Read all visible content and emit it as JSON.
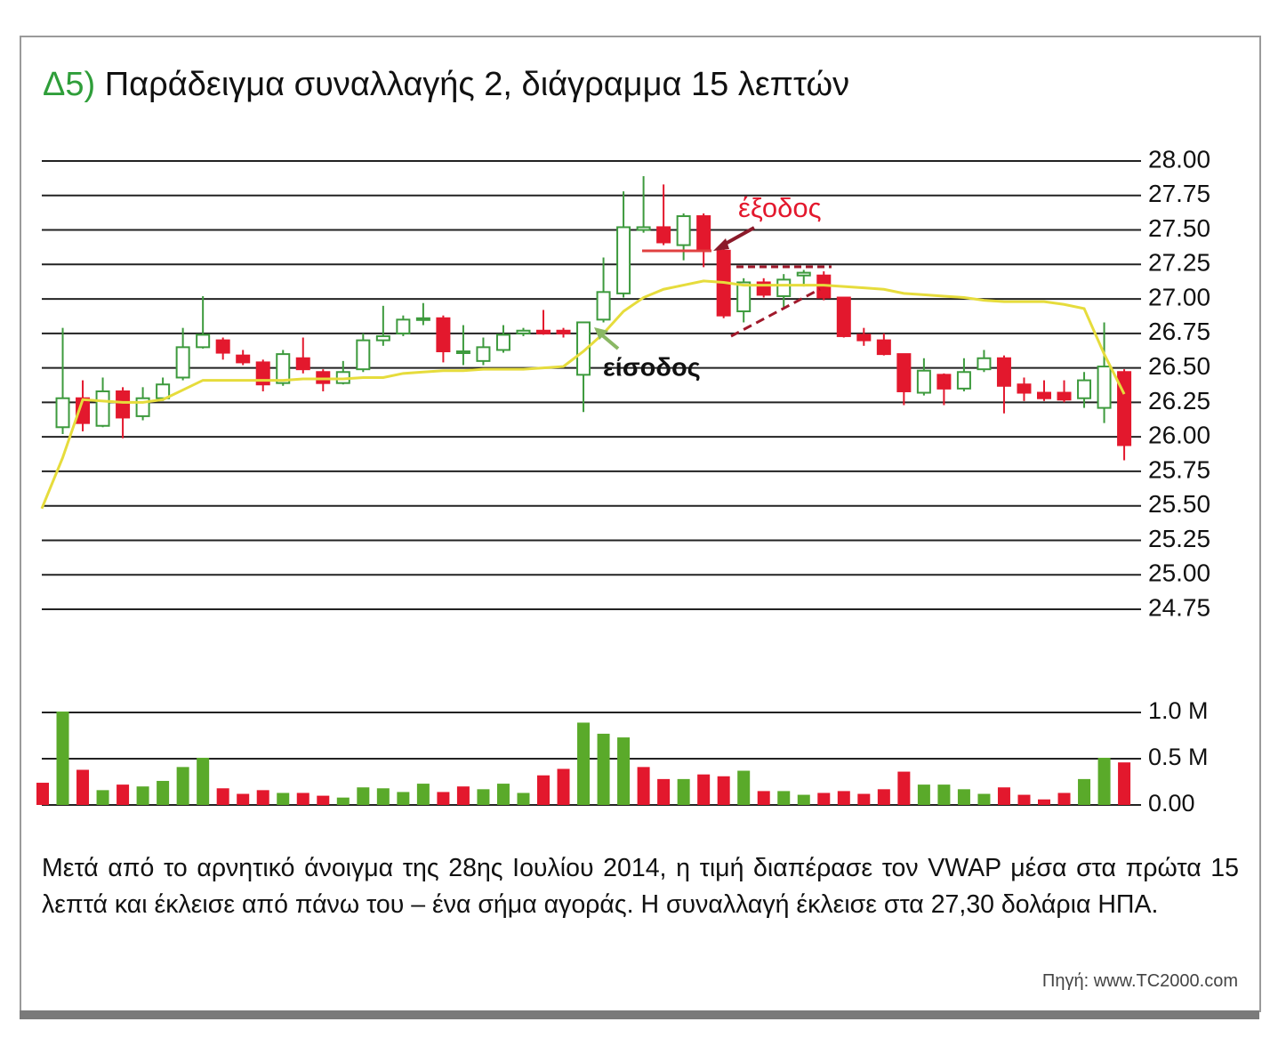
{
  "figure_label": "Δ5)",
  "title": "Παράδειγμα συναλλαγής 2, διάγραμμα 15 λεπτών",
  "chart_data": [
    {
      "type": "candlestick",
      "open": [
        null,
        26.07,
        26.28,
        26.08,
        26.33,
        26.15,
        26.28,
        26.43,
        26.65,
        26.7,
        26.59,
        26.54,
        26.39,
        26.57,
        26.47,
        26.39,
        26.49,
        26.7,
        26.75,
        26.85,
        26.86,
        26.61,
        26.55,
        26.63,
        26.75,
        26.77,
        26.77,
        26.45,
        26.85,
        27.04,
        27.5,
        27.52,
        27.39,
        27.6,
        27.35,
        26.91,
        27.12,
        27.02,
        27.17,
        27.17,
        27.01,
        26.74,
        26.7,
        26.6,
        26.32,
        26.45,
        26.35,
        26.49,
        26.57,
        26.38,
        26.32,
        26.32,
        26.28,
        26.21,
        26.47
      ],
      "high": [
        null,
        26.79,
        26.41,
        26.43,
        26.36,
        26.36,
        26.43,
        26.79,
        27.02,
        26.72,
        26.63,
        26.56,
        26.63,
        26.72,
        26.49,
        26.55,
        26.75,
        26.95,
        26.88,
        26.97,
        26.88,
        26.81,
        26.72,
        26.81,
        26.79,
        26.92,
        26.79,
        26.83,
        27.3,
        27.78,
        27.89,
        27.83,
        27.62,
        27.62,
        27.36,
        27.15,
        27.15,
        27.18,
        27.21,
        27.2,
        27.01,
        26.79,
        26.75,
        26.6,
        26.57,
        26.46,
        26.57,
        26.63,
        26.59,
        26.43,
        26.41,
        26.41,
        26.47,
        26.83,
        26.49
      ],
      "low": [
        null,
        26.02,
        26.04,
        26.07,
        25.99,
        26.12,
        26.26,
        26.41,
        26.64,
        26.56,
        26.52,
        26.33,
        26.37,
        26.46,
        26.33,
        26.38,
        26.47,
        26.66,
        26.73,
        26.81,
        26.54,
        26.52,
        26.52,
        26.61,
        26.73,
        26.74,
        26.72,
        26.18,
        26.83,
        27.01,
        27.48,
        27.39,
        27.28,
        27.23,
        26.86,
        26.83,
        27.01,
        26.94,
        27.09,
        26.99,
        26.72,
        26.66,
        26.59,
        26.23,
        26.3,
        26.23,
        26.33,
        26.47,
        26.17,
        26.26,
        26.26,
        26.25,
        26.21,
        26.1,
        25.83
      ],
      "close": [
        null,
        26.28,
        26.1,
        26.33,
        26.14,
        26.28,
        26.38,
        26.65,
        26.74,
        26.61,
        26.54,
        26.38,
        26.6,
        26.49,
        26.39,
        26.47,
        26.7,
        26.73,
        26.85,
        26.86,
        26.62,
        26.62,
        26.65,
        26.74,
        26.77,
        26.75,
        26.75,
        26.83,
        27.05,
        27.52,
        27.52,
        27.41,
        27.6,
        27.35,
        26.88,
        27.12,
        27.03,
        27.14,
        27.19,
        27.01,
        26.73,
        26.7,
        26.6,
        26.33,
        26.48,
        26.35,
        26.47,
        26.57,
        26.37,
        26.32,
        26.28,
        26.27,
        26.41,
        26.51,
        25.94
      ],
      "up_color": "#3d9a3d",
      "down_color": "#e3182d",
      "vwap": {
        "color": "#e6dc3c",
        "values": [
          25.48,
          25.85,
          26.27,
          26.26,
          26.25,
          26.25,
          26.27,
          26.34,
          26.41,
          26.41,
          26.41,
          26.41,
          26.41,
          26.42,
          26.42,
          26.42,
          26.43,
          26.43,
          26.46,
          26.47,
          26.48,
          26.48,
          26.49,
          26.49,
          26.49,
          26.5,
          26.51,
          26.62,
          26.75,
          26.91,
          27.01,
          27.07,
          27.1,
          27.13,
          27.12,
          27.1,
          27.1,
          27.1,
          27.1,
          27.1,
          27.09,
          27.08,
          27.07,
          27.04,
          27.03,
          27.02,
          27.01,
          26.99,
          26.98,
          26.98,
          26.98,
          26.96,
          26.93,
          26.6,
          26.31
        ]
      },
      "ylim": [
        24.75,
        28
      ],
      "yticks": [
        {
          "value": 28,
          "label": "28.00"
        },
        27.75,
        {
          "value": 27.5,
          "label": "27.50"
        },
        27.25,
        {
          "value": 27,
          "label": "27.00"
        },
        26.75,
        {
          "value": 26.5,
          "label": "26.50"
        },
        26.25,
        {
          "value": 26,
          "label": "26.00"
        },
        25.75,
        {
          "value": 25.5,
          "label": "25.50"
        },
        25.25,
        {
          "value": 25,
          "label": "25.00"
        },
        24.75
      ],
      "grid": true,
      "annotations": [
        {
          "text": "έξοδος",
          "color": "#e3182d"
        },
        {
          "text": "είσοδος",
          "color": "#111111"
        }
      ]
    },
    {
      "type": "bar",
      "values": [
        0.24,
        1.01,
        0.38,
        0.16,
        0.22,
        0.2,
        0.26,
        0.41,
        0.51,
        0.18,
        0.12,
        0.16,
        0.13,
        0.13,
        0.1,
        0.08,
        0.19,
        0.18,
        0.14,
        0.23,
        0.14,
        0.2,
        0.17,
        0.23,
        0.13,
        0.32,
        0.39,
        0.89,
        0.77,
        0.73,
        0.41,
        0.28,
        0.28,
        0.33,
        0.31,
        0.37,
        0.15,
        0.15,
        0.11,
        0.13,
        0.15,
        0.12,
        0.17,
        0.36,
        0.22,
        0.22,
        0.17,
        0.12,
        0.19,
        0.11,
        0.06,
        0.13,
        0.28,
        0.51,
        0.46
      ],
      "colors": [
        "#e3182d",
        "#5aaa2a",
        "#e3182d",
        "#5aaa2a",
        "#e3182d",
        "#5aaa2a",
        "#5aaa2a",
        "#5aaa2a",
        "#5aaa2a",
        "#e3182d",
        "#e3182d",
        "#e3182d",
        "#5aaa2a",
        "#e3182d",
        "#e3182d",
        "#5aaa2a",
        "#5aaa2a",
        "#5aaa2a",
        "#5aaa2a",
        "#5aaa2a",
        "#e3182d",
        "#e3182d",
        "#5aaa2a",
        "#5aaa2a",
        "#5aaa2a",
        "#e3182d",
        "#e3182d",
        "#5aaa2a",
        "#5aaa2a",
        "#5aaa2a",
        "#e3182d",
        "#e3182d",
        "#5aaa2a",
        "#e3182d",
        "#e3182d",
        "#5aaa2a",
        "#e3182d",
        "#5aaa2a",
        "#5aaa2a",
        "#e3182d",
        "#e3182d",
        "#e3182d",
        "#e3182d",
        "#e3182d",
        "#5aaa2a",
        "#5aaa2a",
        "#5aaa2a",
        "#5aaa2a",
        "#e3182d",
        "#e3182d",
        "#e3182d",
        "#e3182d",
        "#5aaa2a",
        "#5aaa2a",
        "#e3182d"
      ],
      "ylim": [
        0,
        1
      ],
      "yticks": [
        {
          "value": 1,
          "label": "1.0 M"
        },
        {
          "value": 0.5,
          "label": "0.5 M"
        },
        {
          "value": 0,
          "label": "0.00"
        }
      ],
      "grid": true
    }
  ],
  "caption": "Μετά από το αρνητικό άνοιγμα της 28ης Ιουλίου 2014, η τιμή διαπέρασε τον VWAP μέσα στα πρώτα 15 λεπτά και έκλεισε από πάνω του – ένα σήμα αγοράς. Η συναλλαγή έκλεισε στα 27,30 δολάρια ΗΠΑ.",
  "source": "Πηγή: www.TC2000.com"
}
